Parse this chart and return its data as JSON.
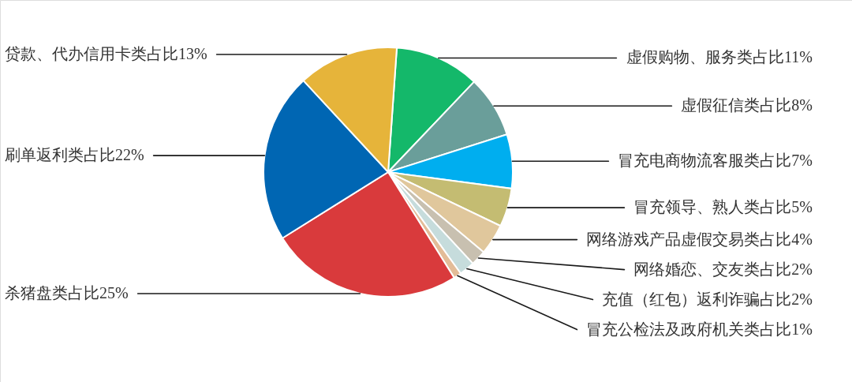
{
  "chart_data": {
    "type": "pie",
    "categories": [
      "虚假购物、服务类占比11%",
      "虚假征信类占比8%",
      "冒充电商物流客服类占比7%",
      "冒充领导、熟人类占比5%",
      "网络游戏产品虚假交易类占比4%",
      "网络婚恋、交友类占比2%",
      "充值（红包）返利诈骗占比2%",
      "冒充公检法及政府机关类占比1%",
      "杀猪盘类占比25%",
      "刷单返利类占比22%",
      "贷款、代办信用卡类占比13%"
    ],
    "values": [
      11,
      8,
      7,
      5,
      4,
      2,
      2,
      1,
      25,
      22,
      13
    ],
    "colors": [
      "#14b86a",
      "#6a9e9a",
      "#00aeef",
      "#c4bc72",
      "#e0c79c",
      "#c8c0b0",
      "#c6dcdc",
      "#e3bc98",
      "#d93a3c",
      "#0066b3",
      "#e6b43a"
    ]
  }
}
